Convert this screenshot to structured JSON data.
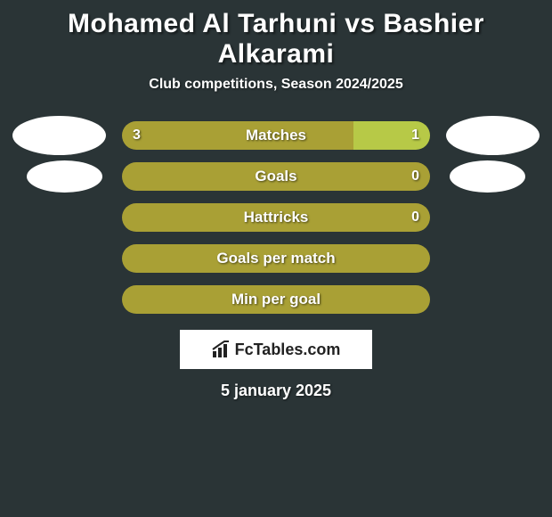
{
  "title": "Mohamed Al Tarhuni vs Bashier Alkarami",
  "subtitle": "Club competitions, Season 2024/2025",
  "colors": {
    "left": "#a9a035",
    "right": "#b7c947",
    "background": "#2a3436",
    "avatar": "#ffffff",
    "logo_bg": "#ffffff",
    "logo_text": "#222222"
  },
  "stats": [
    {
      "label": "Matches",
      "left_val": "3",
      "right_val": "1",
      "left_pct": 75,
      "right_pct": 25,
      "show_avatars": "large"
    },
    {
      "label": "Goals",
      "left_val": "",
      "right_val": "0",
      "left_pct": 100,
      "right_pct": 0,
      "show_avatars": "small"
    },
    {
      "label": "Hattricks",
      "left_val": "",
      "right_val": "0",
      "left_pct": 100,
      "right_pct": 0,
      "show_avatars": "none"
    },
    {
      "label": "Goals per match",
      "left_val": "",
      "right_val": "",
      "left_pct": 100,
      "right_pct": 0,
      "show_avatars": "none"
    },
    {
      "label": "Min per goal",
      "left_val": "",
      "right_val": "",
      "left_pct": 100,
      "right_pct": 0,
      "show_avatars": "none"
    }
  ],
  "logo_text": "FcTables.com",
  "date": "5 january 2025",
  "title_fontsize": 30,
  "subtitle_fontsize": 16,
  "label_fontsize": 17,
  "date_fontsize": 18
}
